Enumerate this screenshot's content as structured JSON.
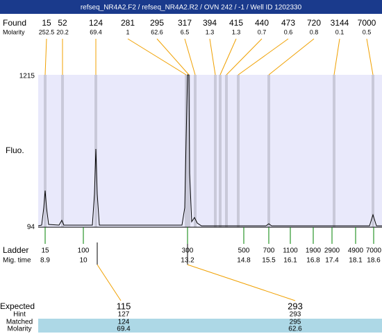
{
  "header": {
    "title": "refseq_NR4A2.F2 / refseq_NR4A2.R2 / OVN 242 / -1 / Well ID 1202330"
  },
  "found": {
    "label": "Found",
    "sublabel": "Molarity",
    "peaks": [
      {
        "size": "15",
        "molarity": "252.5"
      },
      {
        "size": "52",
        "molarity": "20.2"
      },
      {
        "size": "124",
        "molarity": "69.4"
      },
      {
        "size": "281",
        "molarity": "1"
      },
      {
        "size": "295",
        "molarity": "62.6"
      },
      {
        "size": "317",
        "molarity": "6.5"
      },
      {
        "size": "394",
        "molarity": "1.3"
      },
      {
        "size": "415",
        "molarity": "1.3"
      },
      {
        "size": "440",
        "molarity": "0.7"
      },
      {
        "size": "473",
        "molarity": "0.6"
      },
      {
        "size": "720",
        "molarity": "0.8"
      },
      {
        "size": "3144",
        "molarity": "0.1"
      },
      {
        "size": "7000",
        "molarity": "0.5"
      }
    ]
  },
  "plot": {
    "y_label": "Fluo.",
    "y_max": "1215",
    "y_min": "94"
  },
  "ladder": {
    "label": "Ladder",
    "sublabel": "Mig. time",
    "bands": [
      {
        "size": "15",
        "time": "8.9"
      },
      {
        "size": "100",
        "time": "10"
      },
      {
        "size": "300",
        "time": "13.2"
      },
      {
        "size": "500",
        "time": "14.8"
      },
      {
        "size": "700",
        "time": "15.5"
      },
      {
        "size": "1100",
        "time": "16.1"
      },
      {
        "size": "1900",
        "time": "16.8"
      },
      {
        "size": "2900",
        "time": "17.4"
      },
      {
        "size": "4900",
        "time": "18.1"
      },
      {
        "size": "7000",
        "time": "18.6"
      }
    ]
  },
  "expected": {
    "labels": [
      "Expected",
      "Hint",
      "Matched",
      "Molarity"
    ],
    "columns": [
      {
        "expected": "115",
        "hint": "127",
        "matched": "124",
        "molarity": "69.4"
      },
      {
        "expected": "293",
        "hint": "293",
        "matched": "295",
        "molarity": "62.6"
      }
    ]
  }
}
